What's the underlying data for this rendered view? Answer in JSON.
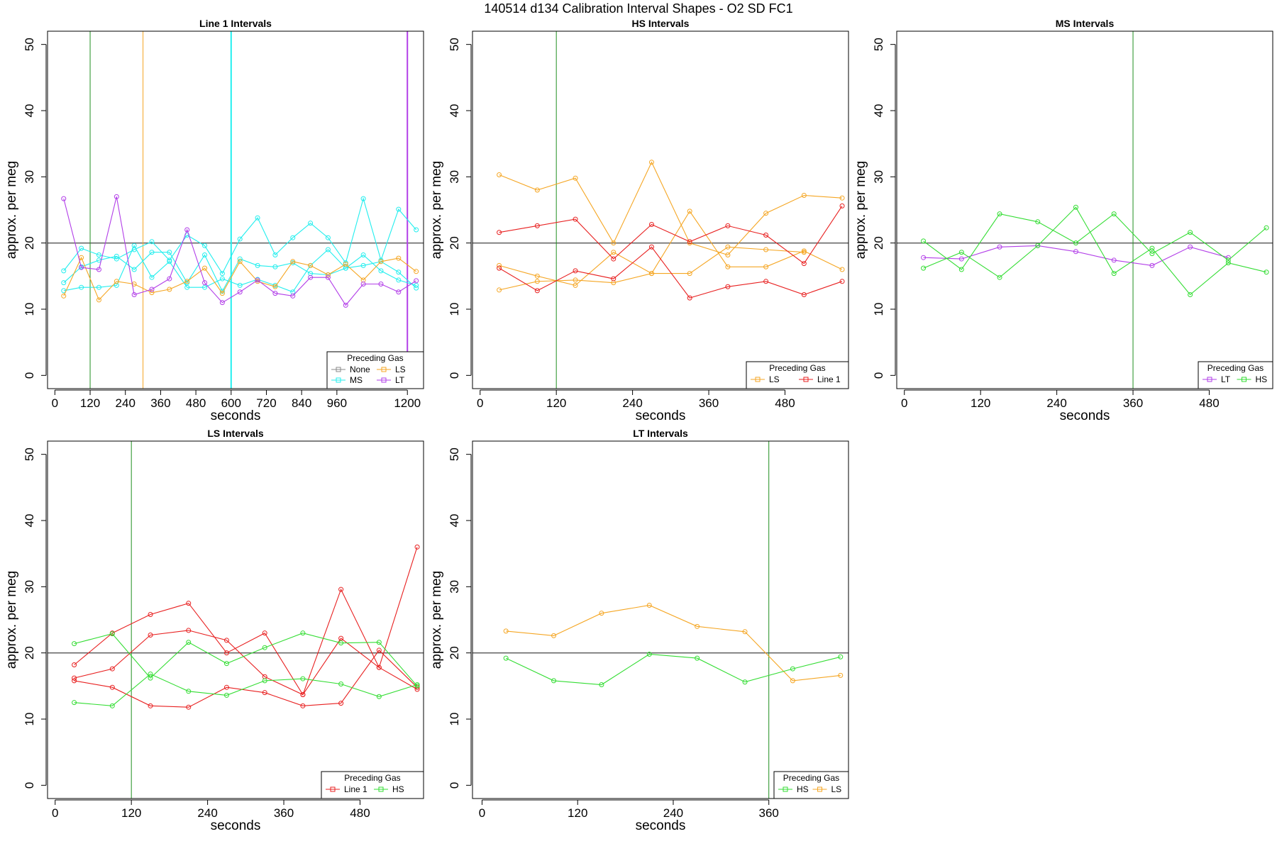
{
  "page_title": "140514   d134   Calibration Interval Shapes - O2 SD FC1",
  "colors": {
    "None": "#888888",
    "MS": "#22eeee",
    "LS": "#f5a623",
    "LT": "#b23ee8",
    "Line 1": "#e82020",
    "HS": "#33dd33",
    "vline_green": "#1f8f1f",
    "refline": "#555555"
  },
  "chart_data": [
    {
      "type": "line",
      "title": "Line 1 Intervals",
      "xlabel": "seconds",
      "ylabel": "approx. per meg",
      "xlim": [
        -25,
        1255
      ],
      "ylim": [
        -2,
        52
      ],
      "xticks": [
        0,
        120,
        240,
        360,
        480,
        600,
        720,
        840,
        960,
        1200
      ],
      "yticks": [
        0,
        10,
        20,
        30,
        40,
        50
      ],
      "hline": 20,
      "legend_title": "Preceding Gas",
      "legend_position": "bottom-right",
      "legend_entries": [
        "None",
        "LS",
        "MS",
        "LT"
      ],
      "legend_cols": 2,
      "vlines": [
        {
          "x": 120,
          "color_key": "vline_green",
          "width": 1
        },
        {
          "x": 300,
          "color_key": "LS",
          "width": 1
        },
        {
          "x": 600,
          "color_key": "MS",
          "width": 2
        },
        {
          "x": 1200,
          "color_key": "LT",
          "width": 2
        }
      ],
      "series": [
        {
          "name": "MS",
          "color_key": "MS",
          "x": [
            30,
            90,
            150,
            210,
            270,
            330,
            390,
            450,
            510,
            570,
            630,
            690,
            750,
            810,
            870,
            930,
            990,
            1050,
            1110,
            1170,
            1230
          ],
          "y": [
            15.8,
            19.2,
            18.2,
            17.6,
            19.0,
            20.2,
            17.4,
            21.2,
            19.6,
            15.4,
            20.6,
            23.8,
            18.2,
            20.8,
            23.0,
            20.8,
            17.0,
            26.7,
            17.4,
            25.1,
            22.0
          ]
        },
        {
          "name": "MS",
          "color_key": "MS",
          "x": [
            30,
            90,
            150,
            210,
            270,
            330,
            390,
            450,
            510,
            570,
            630,
            690,
            750,
            810,
            870,
            930,
            990,
            1050,
            1110,
            1170,
            1230
          ],
          "y": [
            14.0,
            16.4,
            17.4,
            18.0,
            16.0,
            18.6,
            18.6,
            14.0,
            18.2,
            12.7,
            17.6,
            16.6,
            16.4,
            17.0,
            15.4,
            15.2,
            16.2,
            18.2,
            15.8,
            14.4,
            13.6
          ]
        },
        {
          "name": "MS",
          "color_key": "MS",
          "x": [
            30,
            90,
            150,
            210,
            270,
            330,
            390,
            450,
            510,
            570,
            630,
            690,
            750,
            810,
            870,
            930,
            990,
            1050,
            1110,
            1170,
            1230
          ],
          "y": [
            12.8,
            13.3,
            13.3,
            13.6,
            19.6,
            14.8,
            17.2,
            13.3,
            13.3,
            14.6,
            13.6,
            14.5,
            13.6,
            12.6,
            16.6,
            19.0,
            16.2,
            16.6,
            17.2,
            15.6,
            13.2
          ]
        },
        {
          "name": "LS",
          "color_key": "LS",
          "x": [
            30,
            90,
            150,
            210,
            270,
            330,
            390,
            450,
            510,
            570,
            630,
            690,
            750,
            810,
            870,
            930,
            990,
            1050,
            1110,
            1170,
            1230
          ],
          "y": [
            12.0,
            17.8,
            11.4,
            14.2,
            13.8,
            12.5,
            13.0,
            14.2,
            16.2,
            12.4,
            17.2,
            14.2,
            13.4,
            17.2,
            16.6,
            15.2,
            16.8,
            14.4,
            17.2,
            17.7,
            15.7
          ]
        },
        {
          "name": "LT",
          "color_key": "LT",
          "x": [
            30,
            90,
            150,
            210,
            270,
            330,
            390,
            450,
            510,
            570,
            630,
            690,
            750,
            810,
            870,
            930,
            990,
            1050,
            1110,
            1170,
            1230
          ],
          "y": [
            26.7,
            16.3,
            16.0,
            27.0,
            12.2,
            13.0,
            14.6,
            22.0,
            14.0,
            11.0,
            12.6,
            14.4,
            12.4,
            12.0,
            14.8,
            14.8,
            10.6,
            13.8,
            13.8,
            12.6,
            14.3
          ]
        }
      ]
    },
    {
      "type": "line",
      "title": "HS Intervals",
      "xlabel": "seconds",
      "ylabel": "approx. per meg",
      "xlim": [
        -12,
        580
      ],
      "ylim": [
        -2,
        52
      ],
      "xticks": [
        0,
        120,
        240,
        360,
        480
      ],
      "yticks": [
        0,
        10,
        20,
        30,
        40,
        50
      ],
      "hline": 20,
      "legend_title": "Preceding Gas",
      "legend_position": "bottom-right",
      "legend_entries": [
        "LS",
        "Line 1"
      ],
      "legend_cols": 2,
      "vlines": [
        {
          "x": 120,
          "color_key": "vline_green",
          "width": 1
        }
      ],
      "series": [
        {
          "name": "LS",
          "color_key": "LS",
          "x": [
            30,
            90,
            150,
            210,
            270,
            330,
            390,
            450,
            510,
            570
          ],
          "y": [
            30.3,
            28.0,
            29.8,
            20.0,
            32.2,
            20.0,
            18.2,
            24.5,
            27.2,
            26.8
          ]
        },
        {
          "name": "LS",
          "color_key": "LS",
          "x": [
            30,
            90,
            150,
            210,
            270,
            330,
            390,
            450,
            510,
            570
          ],
          "y": [
            16.6,
            15.0,
            13.6,
            18.6,
            15.4,
            24.8,
            16.4,
            16.4,
            18.8,
            16.0
          ]
        },
        {
          "name": "LS",
          "color_key": "LS",
          "x": [
            30,
            90,
            150,
            210,
            270,
            330,
            390,
            450,
            510,
            570
          ],
          "y": [
            12.9,
            14.2,
            14.4,
            14.0,
            15.4,
            15.4,
            19.4,
            19.0,
            18.6,
            null
          ]
        },
        {
          "name": "Line 1",
          "color_key": "Line 1",
          "x": [
            30,
            90,
            150,
            210,
            270,
            330,
            390,
            450,
            510,
            570
          ],
          "y": [
            21.6,
            22.6,
            23.6,
            17.6,
            22.8,
            20.2,
            22.6,
            21.2,
            16.9,
            25.6
          ]
        },
        {
          "name": "Line 1",
          "color_key": "Line 1",
          "x": [
            30,
            90,
            150,
            210,
            270,
            330,
            390,
            450,
            510,
            570
          ],
          "y": [
            16.2,
            12.8,
            15.8,
            14.6,
            19.4,
            11.7,
            13.4,
            14.2,
            12.2,
            14.2
          ]
        }
      ]
    },
    {
      "type": "line",
      "title": "MS Intervals",
      "xlabel": "seconds",
      "ylabel": "approx. per meg",
      "xlim": [
        -12,
        580
      ],
      "ylim": [
        -2,
        52
      ],
      "xticks": [
        0,
        120,
        240,
        360,
        480
      ],
      "yticks": [
        0,
        10,
        20,
        30,
        40,
        50
      ],
      "hline": 20,
      "legend_title": "Preceding Gas",
      "legend_position": "bottom-right",
      "legend_entries": [
        "LT",
        "HS"
      ],
      "legend_cols": 2,
      "vlines": [
        {
          "x": 360,
          "color_key": "vline_green",
          "width": 1
        }
      ],
      "series": [
        {
          "name": "LT",
          "color_key": "LT",
          "x": [
            30,
            90,
            150,
            210,
            270,
            330,
            390,
            450,
            510
          ],
          "y": [
            17.8,
            17.6,
            19.4,
            19.6,
            18.7,
            17.4,
            16.6,
            19.4,
            17.8
          ]
        },
        {
          "name": "HS",
          "color_key": "HS",
          "x": [
            30,
            90,
            150,
            210,
            270,
            330,
            390,
            450,
            510,
            570
          ],
          "y": [
            20.3,
            16.0,
            24.4,
            23.2,
            20.0,
            24.4,
            18.4,
            21.6,
            17.4,
            22.3
          ]
        },
        {
          "name": "HS",
          "color_key": "HS",
          "x": [
            30,
            90,
            150,
            210,
            270,
            330,
            390,
            450,
            510,
            570
          ],
          "y": [
            16.2,
            18.6,
            14.8,
            19.6,
            25.4,
            15.4,
            19.2,
            12.2,
            17.0,
            15.6
          ]
        }
      ]
    },
    {
      "type": "line",
      "title": "LS Intervals",
      "xlabel": "seconds",
      "ylabel": "approx. per meg",
      "xlim": [
        -12,
        580
      ],
      "ylim": [
        -2,
        52
      ],
      "xticks": [
        0,
        120,
        240,
        360,
        480
      ],
      "yticks": [
        0,
        10,
        20,
        30,
        40,
        50
      ],
      "hline": 20,
      "legend_title": "Preceding Gas",
      "legend_position": "bottom-right",
      "legend_entries": [
        "Line 1",
        "HS"
      ],
      "legend_cols": 2,
      "vlines": [
        {
          "x": 120,
          "color_key": "vline_green",
          "width": 1
        }
      ],
      "series": [
        {
          "name": "Line 1",
          "color_key": "Line 1",
          "x": [
            30,
            90,
            150,
            210,
            270,
            330,
            390,
            450,
            510,
            570
          ],
          "y": [
            18.2,
            23.0,
            25.8,
            27.5,
            20.0,
            23.0,
            13.7,
            29.6,
            17.8,
            36.0
          ]
        },
        {
          "name": "Line 1",
          "color_key": "Line 1",
          "x": [
            30,
            90,
            150,
            210,
            270,
            330,
            390,
            450,
            510,
            570
          ],
          "y": [
            16.2,
            17.6,
            22.7,
            23.4,
            21.9,
            16.4,
            13.7,
            22.2,
            17.8,
            14.5
          ]
        },
        {
          "name": "Line 1",
          "color_key": "Line 1",
          "x": [
            30,
            90,
            150,
            210,
            270,
            330,
            390,
            450,
            510,
            570
          ],
          "y": [
            15.8,
            14.8,
            12.0,
            11.8,
            14.8,
            14.0,
            12.0,
            12.4,
            20.4,
            14.8
          ]
        },
        {
          "name": "HS",
          "color_key": "HS",
          "x": [
            30,
            90,
            150,
            210,
            270,
            330,
            390,
            450,
            510,
            570
          ],
          "y": [
            21.4,
            22.9,
            16.2,
            21.6,
            18.4,
            20.8,
            23.0,
            21.5,
            21.6,
            15.0
          ]
        },
        {
          "name": "HS",
          "color_key": "HS",
          "x": [
            30,
            90,
            150,
            210,
            270,
            330,
            390,
            450,
            510,
            570
          ],
          "y": [
            12.5,
            12.0,
            16.8,
            14.2,
            13.6,
            15.8,
            16.1,
            15.3,
            13.4,
            15.2
          ]
        }
      ]
    },
    {
      "type": "line",
      "title": "LT Intervals",
      "xlabel": "seconds",
      "ylabel": "approx. per meg",
      "xlim": [
        -12,
        460
      ],
      "ylim": [
        -2,
        52
      ],
      "xticks": [
        0,
        120,
        240,
        360
      ],
      "yticks": [
        0,
        10,
        20,
        30,
        40,
        50
      ],
      "hline": 20,
      "legend_title": "Preceding Gas",
      "legend_position": "bottom-right",
      "legend_entries": [
        "HS",
        "LS"
      ],
      "legend_cols": 2,
      "vlines": [
        {
          "x": 360,
          "color_key": "vline_green",
          "width": 1
        }
      ],
      "series": [
        {
          "name": "LS",
          "color_key": "LS",
          "x": [
            30,
            90,
            150,
            210,
            270,
            330,
            390,
            450
          ],
          "y": [
            23.3,
            22.6,
            26.0,
            27.2,
            24.0,
            23.2,
            15.8,
            16.6
          ]
        },
        {
          "name": "HS",
          "color_key": "HS",
          "x": [
            30,
            90,
            150,
            210,
            270,
            330,
            390,
            450
          ],
          "y": [
            19.2,
            15.8,
            15.2,
            19.8,
            19.2,
            15.6,
            17.6,
            19.4
          ]
        }
      ]
    }
  ]
}
